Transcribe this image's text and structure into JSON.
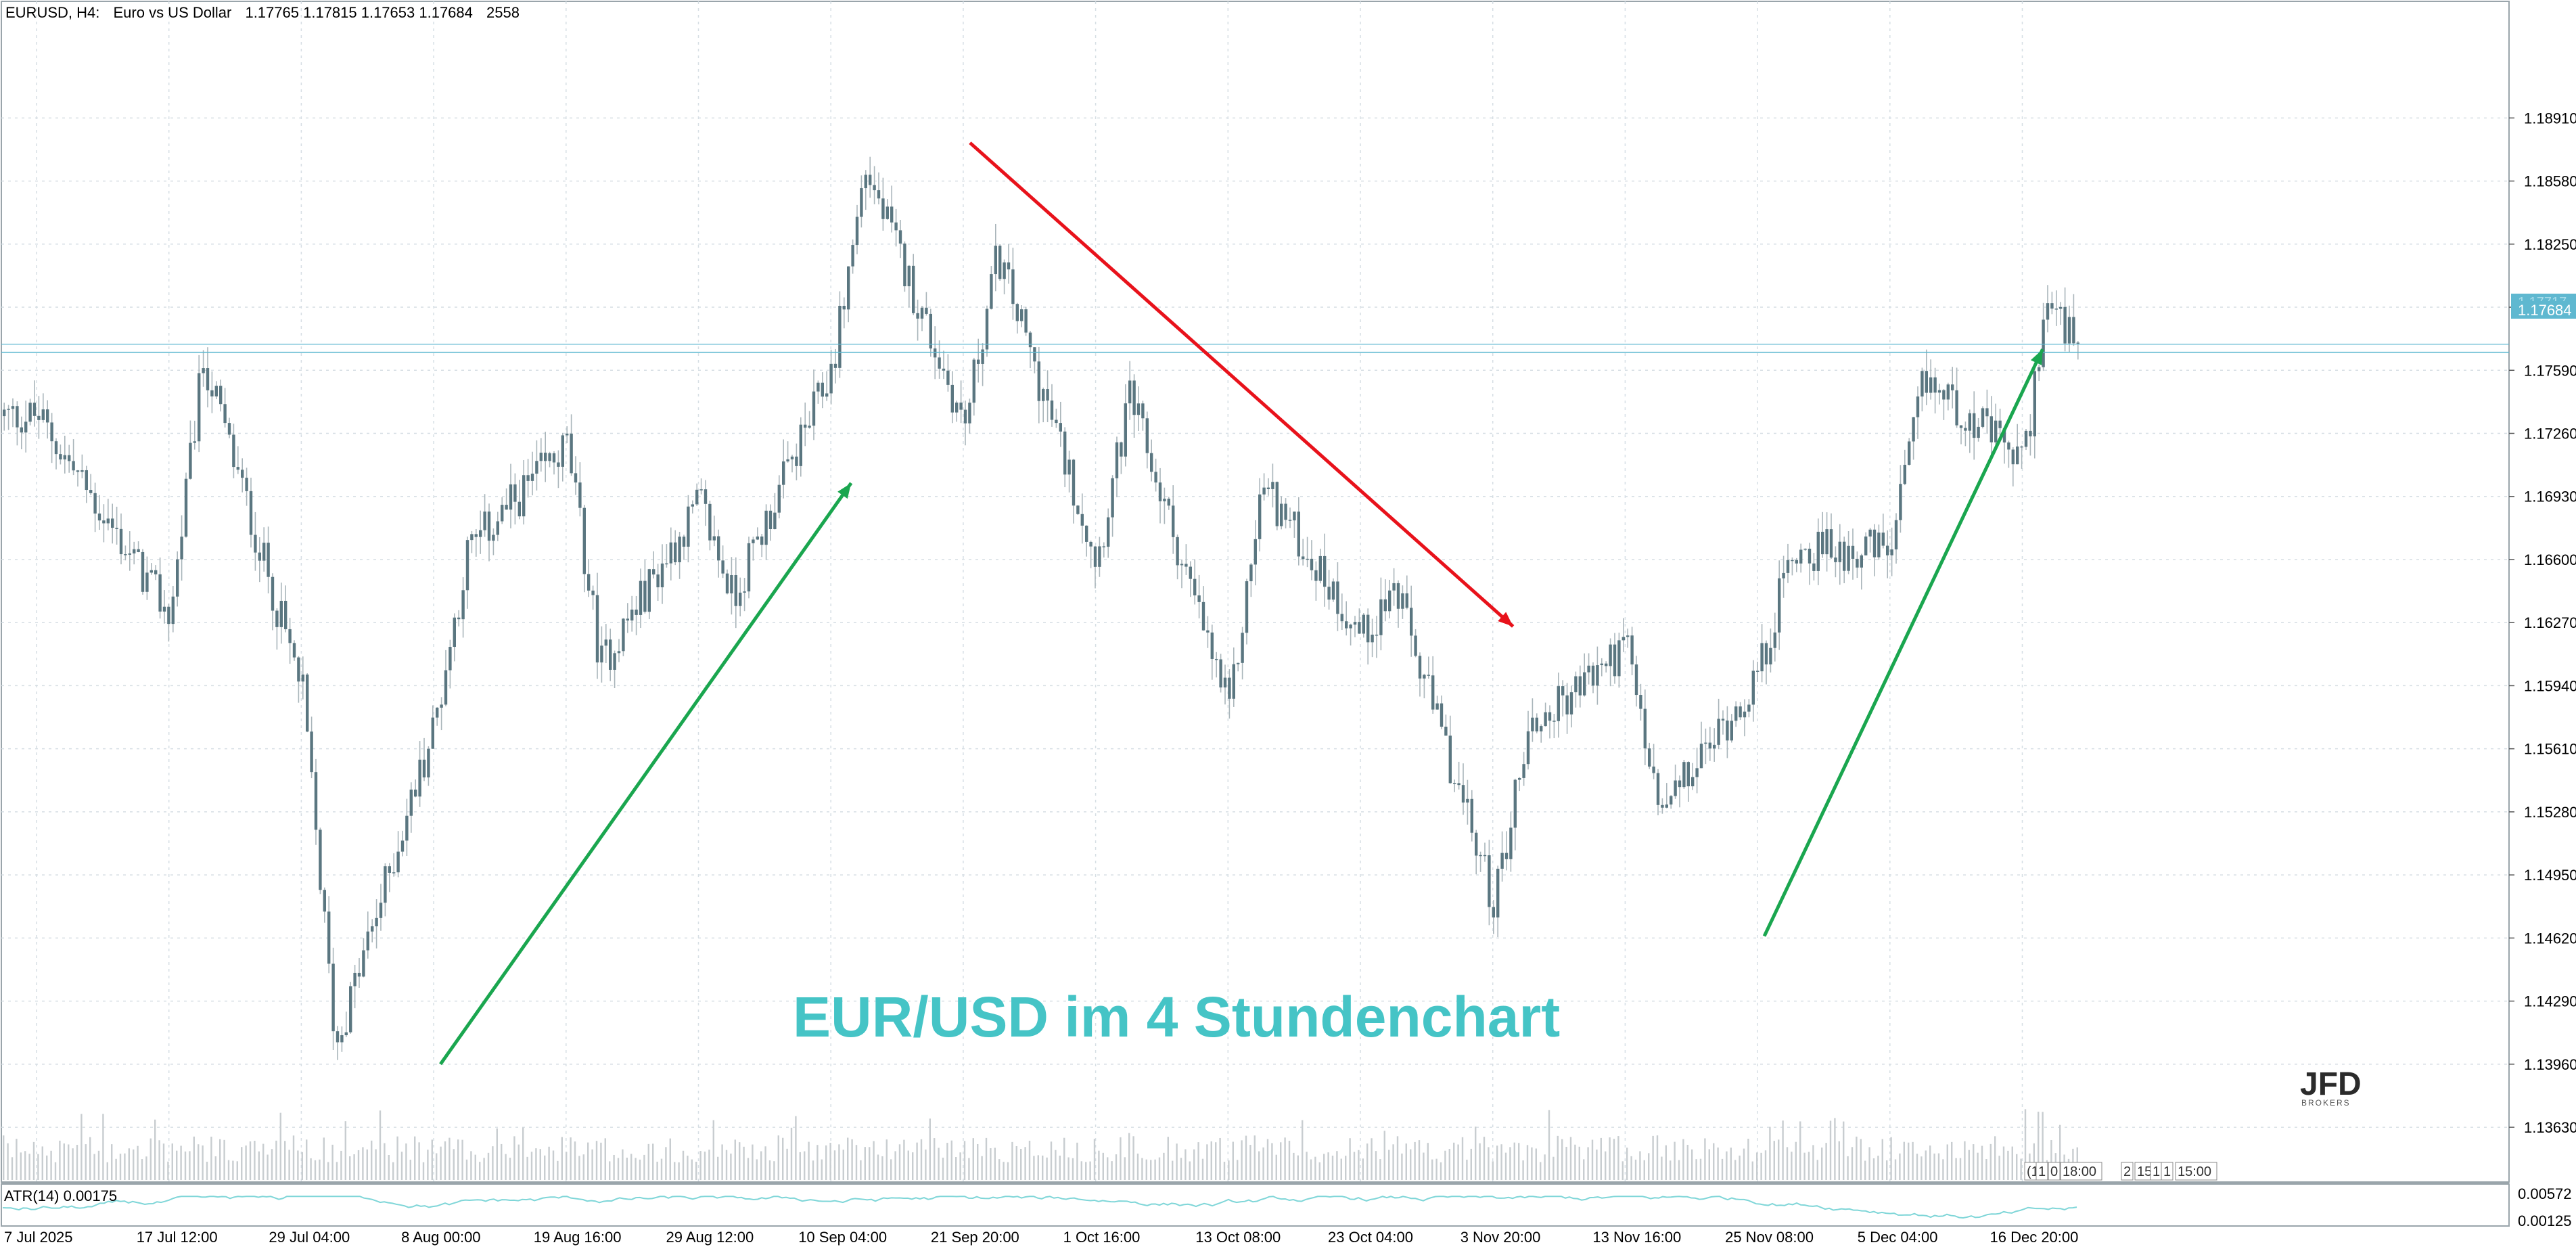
{
  "header": {
    "symbol": "EURUSD, H4:",
    "description": "Euro vs US Dollar",
    "ohlc": "1.17765 1.17815 1.17653 1.17684",
    "bars": "2558"
  },
  "overlay_title": "EUR/USD im 4 Stundenchart",
  "logo": {
    "text": "JFD",
    "subtext": "BROKERS"
  },
  "indicator": {
    "label": "ATR(14) 0.00175",
    "scale_top": "0.00572",
    "scale_bottom": "0.00125"
  },
  "price_marker": {
    "current": "1.17684",
    "ask_hint": "1.17717"
  },
  "bottom_time_labels": [
    "(1",
    "1",
    "0",
    "18:00",
    "2",
    "15",
    "1",
    "1",
    "15:00"
  ],
  "colors": {
    "candle": "#5a7680",
    "wick": "#a9b5ba",
    "volume": "#c8cdd0",
    "grid": "#d6dee4",
    "price_line": "#5fb8d0",
    "trend_up": "#1aa64f",
    "trend_down": "#e8121b",
    "title": "#45c4c6",
    "atr": "#7fd6d8"
  },
  "chart_data": {
    "type": "candlestick",
    "symbol": "EURUSD",
    "timeframe": "H4",
    "y_ticks": [
      "1.18910",
      "1.18580",
      "1.18250",
      "1.17920",
      "1.17590",
      "1.17260",
      "1.16930",
      "1.16600",
      "1.16270",
      "1.15940",
      "1.15610",
      "1.15280",
      "1.14950",
      "1.14620",
      "1.14290",
      "1.13960",
      "1.13630"
    ],
    "ylim": [
      1.1334,
      1.1952
    ],
    "x_ticks": [
      "7 Jul 2025",
      "17 Jul 12:00",
      "29 Jul 04:00",
      "8 Aug 00:00",
      "19 Aug 16:00",
      "29 Aug 12:00",
      "10 Sep 04:00",
      "21 Sep 20:00",
      "1 Oct 16:00",
      "13 Oct 08:00",
      "23 Oct 04:00",
      "3 Nov 20:00",
      "13 Nov 16:00",
      "25 Nov 08:00",
      "5 Dec 04:00",
      "16 Dec 20:00"
    ],
    "price_path": [
      [
        "7 Jul 2025",
        1.1735
      ],
      [
        "17 Jul 12:00",
        1.163
      ],
      [
        "17 Jul 12:00",
        1.1765
      ],
      [
        "29 Jul 04:00",
        1.159
      ],
      [
        "29 Jul 04:00",
        1.1405
      ],
      [
        "8 Aug 00:00",
        1.1575
      ],
      [
        "8 Aug 00:00",
        1.1665
      ],
      [
        "19 Aug 16:00",
        1.172
      ],
      [
        "19 Aug 16:00",
        1.1605
      ],
      [
        "29 Aug 12:00",
        1.169
      ],
      [
        "29 Aug 12:00",
        1.164
      ],
      [
        "10 Sep 04:00",
        1.176
      ],
      [
        "10 Sep 04:00",
        1.1865
      ],
      [
        "21 Sep 20:00",
        1.173
      ],
      [
        "21 Sep 20:00",
        1.182
      ],
      [
        "1 Oct 16:00",
        1.166
      ],
      [
        "1 Oct 16:00",
        1.1745
      ],
      [
        "13 Oct 08:00",
        1.158
      ],
      [
        "13 Oct 08:00",
        1.17
      ],
      [
        "23 Oct 04:00",
        1.162
      ],
      [
        "23 Oct 04:00",
        1.1645
      ],
      [
        "3 Nov 20:00",
        1.148
      ],
      [
        "3 Nov 20:00",
        1.157
      ],
      [
        "13 Nov 16:00",
        1.1615
      ],
      [
        "13 Nov 16:00",
        1.1525
      ],
      [
        "25 Nov 08:00",
        1.16
      ],
      [
        "25 Nov 08:00",
        1.1665
      ],
      [
        "5 Dec 04:00",
        1.1665
      ],
      [
        "5 Dec 04:00",
        1.1755
      ],
      [
        "16 Dec 20:00",
        1.171
      ],
      [
        "16 Dec 20:00",
        1.1795
      ],
      [
        "16 Dec 20:00",
        1.1768
      ]
    ],
    "current_price": 1.17684,
    "trendlines": [
      {
        "color": "green",
        "from": [
          "8 Aug 00:00",
          1.1396
        ],
        "to": [
          "10 Sep 04:00",
          1.17
        ]
      },
      {
        "color": "red",
        "from": [
          "21 Sep 20:00",
          1.1878
        ],
        "to": [
          "3 Nov 20:00",
          1.1625
        ]
      },
      {
        "color": "green",
        "from": [
          "25 Nov 08:00",
          1.1463
        ],
        "to": [
          "16 Dec 20:00",
          1.177
        ]
      }
    ],
    "indicator": {
      "name": "ATR(14)",
      "value": 0.00175,
      "ylim": [
        0.00125,
        0.00572
      ]
    },
    "grid": true
  }
}
